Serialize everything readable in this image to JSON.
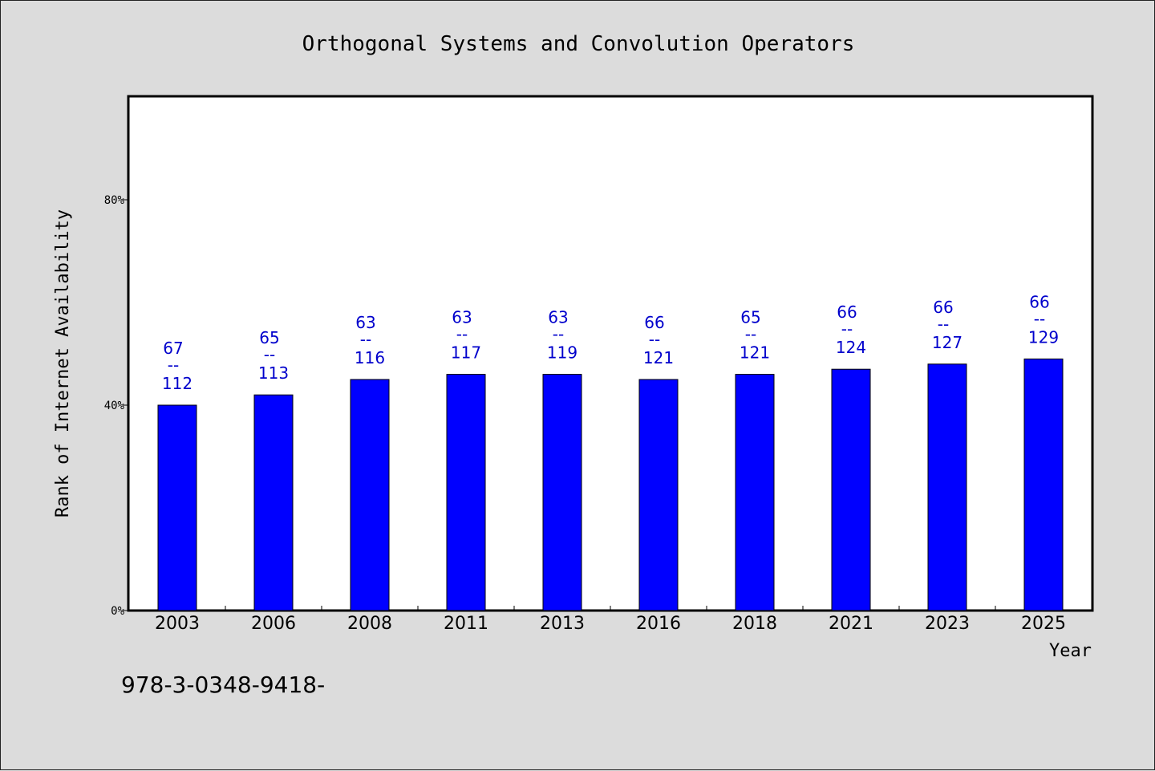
{
  "chart_data": {
    "type": "bar",
    "title": "Orthogonal Systems and Convolution Operators",
    "xlabel": "Year",
    "ylabel": "Rank of Internet Availability",
    "categories": [
      "2003",
      "2006",
      "2008",
      "2011",
      "2013",
      "2016",
      "2018",
      "2021",
      "2023",
      "2025"
    ],
    "values": [
      0.4,
      0.42,
      0.45,
      0.46,
      0.46,
      0.45,
      0.46,
      0.47,
      0.48,
      0.49
    ],
    "ylim": [
      0,
      1.0
    ],
    "yticks": [
      {
        "value": 0,
        "label": "0%"
      },
      {
        "value": 0.4,
        "label": "40%"
      },
      {
        "value": 0.8,
        "label": "80%"
      }
    ],
    "data_labels": [
      {
        "rank": "67",
        "sep": "--",
        "total": "112"
      },
      {
        "rank": "65",
        "sep": "--",
        "total": "113"
      },
      {
        "rank": "63",
        "sep": "--",
        "total": "116"
      },
      {
        "rank": "63",
        "sep": "--",
        "total": "117"
      },
      {
        "rank": "63",
        "sep": "--",
        "total": "119"
      },
      {
        "rank": "66",
        "sep": "--",
        "total": "121"
      },
      {
        "rank": "65",
        "sep": "--",
        "total": "121"
      },
      {
        "rank": "66",
        "sep": "--",
        "total": "124"
      },
      {
        "rank": "66",
        "sep": "--",
        "total": "127"
      },
      {
        "rank": "66",
        "sep": "--",
        "total": "129"
      }
    ],
    "grid": false,
    "legend": "none",
    "colors": {
      "bar": "#0000ff",
      "label": "#0000cc",
      "background": "#dcdcdc",
      "plot_background": "#ffffff"
    }
  },
  "footer": {
    "isbn": "978-3-0348-9418-"
  }
}
